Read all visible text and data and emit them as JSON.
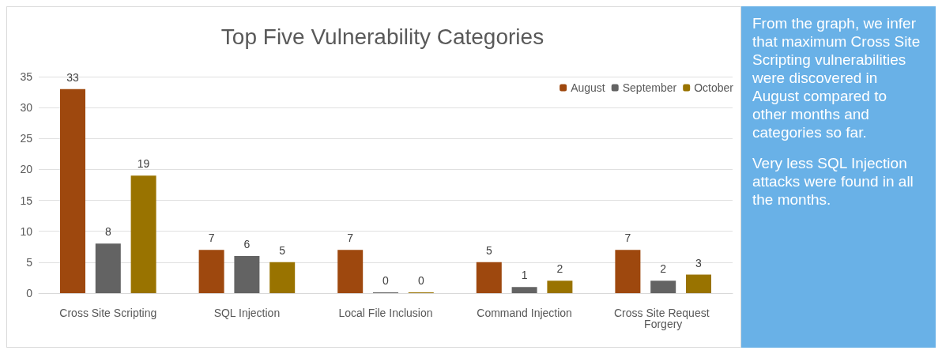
{
  "chart_data": {
    "type": "bar",
    "title": "Top Five Vulnerability Categories",
    "categories": [
      "Cross Site Scripting",
      "SQL Injection",
      "Local File Inclusion",
      "Command Injection",
      "Cross Site Request Forgery"
    ],
    "series": [
      {
        "name": "August",
        "color": "#9e480e",
        "values": [
          33,
          7,
          7,
          5,
          7
        ]
      },
      {
        "name": "September",
        "color": "#636363",
        "values": [
          8,
          6,
          0,
          1,
          2
        ]
      },
      {
        "name": "October",
        "color": "#997300",
        "values": [
          19,
          5,
          0,
          2,
          3
        ]
      }
    ],
    "ylim": [
      0,
      35
    ],
    "yticks": [
      0,
      5,
      10,
      15,
      20,
      25,
      30,
      35
    ],
    "grid": "y",
    "legend": "top right",
    "data_labels": true,
    "annotations": [
      "From the graph, we infer that maximum Cross Site Scripting vulnerabilities were discovered in August compared to other months and categories so far.",
      "Very less SQL Injection attacks were found in all the months."
    ]
  }
}
